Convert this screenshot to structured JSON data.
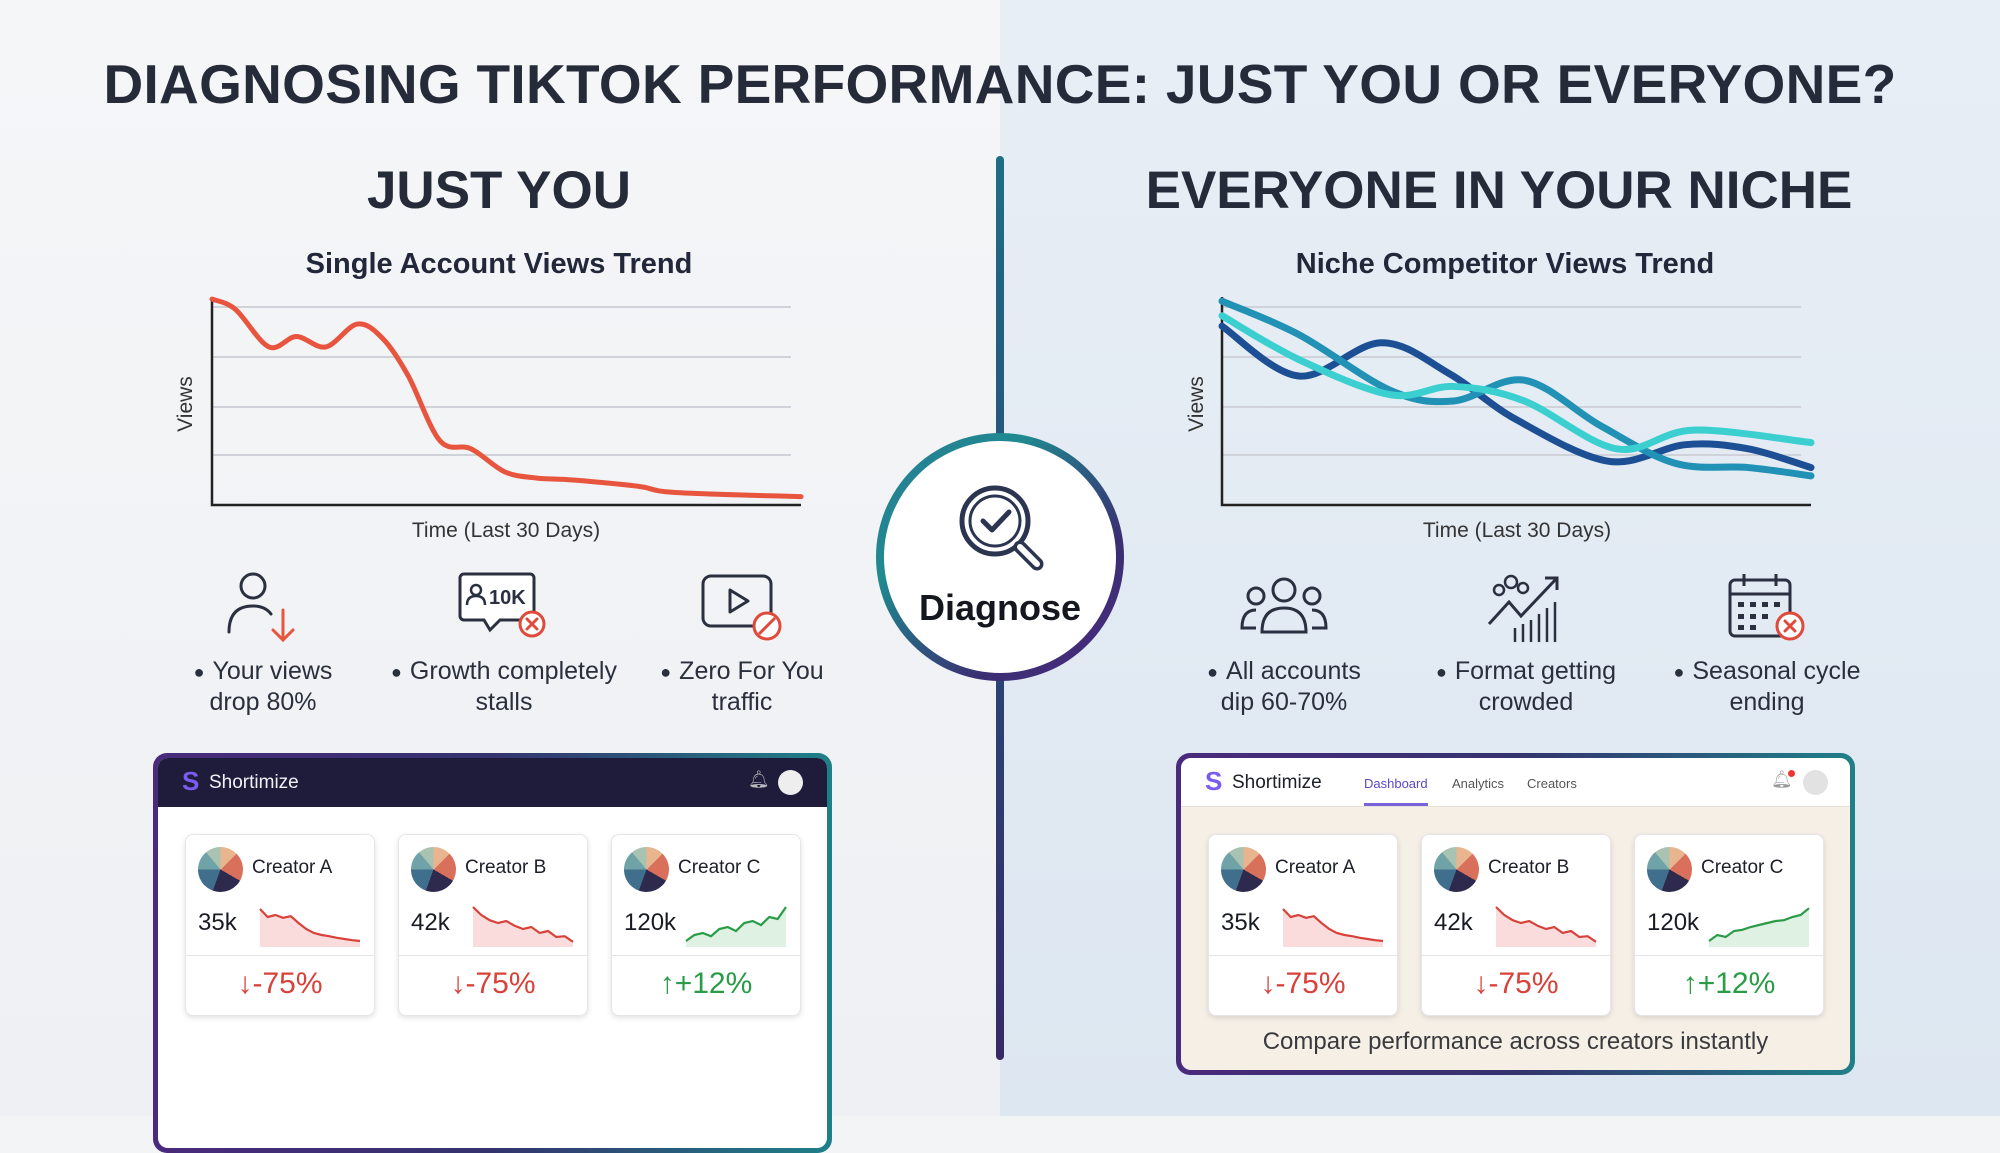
{
  "title": "DIAGNOSING TIKTOK PERFORMANCE: JUST YOU OR EVERYONE?",
  "colors": {
    "red": "#e8553f",
    "navy": "#1d4f94",
    "teal": "#2191b5",
    "cyan": "#3ccfd0",
    "down": "#d8423a",
    "up": "#2a9b46",
    "accent": "#6a4fd0"
  },
  "left": {
    "heading": "JUST YOU",
    "chart_title": "Single Account Views Trend",
    "features": [
      {
        "icon": "user-down-icon",
        "line1": "Your views",
        "line2": "drop 80%"
      },
      {
        "icon": "follower-stall-icon",
        "badge": "10K",
        "line1": "Growth completely",
        "line2": "stalls"
      },
      {
        "icon": "video-blocked-icon",
        "line1": "Zero For You",
        "line2": "traffic"
      }
    ]
  },
  "right": {
    "heading": "EVERYONE IN YOUR NICHE",
    "chart_title": "Niche Competitor Views Trend",
    "features": [
      {
        "icon": "group-icon",
        "line1": "All accounts",
        "line2": "dip 60-70%"
      },
      {
        "icon": "crowd-trend-icon",
        "line1": "Format getting",
        "line2": "crowded"
      },
      {
        "icon": "calendar-cancel-icon",
        "line1": "Seasonal cycle",
        "line2": "ending"
      }
    ]
  },
  "center": {
    "label": "Diagnose",
    "icon": "search-check-icon"
  },
  "dashboard_left": {
    "brand": "Shortimize",
    "cards": [
      {
        "name": "Creator A",
        "value": "35k",
        "change": "-75%",
        "dir": "down",
        "arrow": "↓",
        "spark": [
          90,
          70,
          75,
          68,
          72,
          55,
          40,
          30,
          25,
          22,
          18,
          15,
          12,
          10
        ]
      },
      {
        "name": "Creator B",
        "value": "42k",
        "change": "-75%",
        "dir": "down",
        "arrow": "↓",
        "spark": [
          95,
          75,
          62,
          55,
          60,
          48,
          40,
          45,
          30,
          35,
          20,
          22,
          8
        ]
      },
      {
        "name": "Creator C",
        "value": "120k",
        "change": "+12%",
        "dir": "up",
        "arrow": "↑",
        "spark": [
          10,
          25,
          30,
          22,
          40,
          45,
          35,
          55,
          60,
          50,
          70,
          65,
          95
        ]
      }
    ]
  },
  "dashboard_right": {
    "brand": "Shortimize",
    "tabs": [
      "Dashboard",
      "Analytics",
      "Creators"
    ],
    "active_tab": "Dashboard",
    "caption": "Compare performance across creators instantly",
    "cards": [
      {
        "name": "Creator A",
        "value": "35k",
        "change": "-75%",
        "dir": "down",
        "arrow": "↓",
        "spark": [
          90,
          70,
          75,
          68,
          72,
          55,
          40,
          30,
          25,
          22,
          18,
          15,
          12,
          10
        ]
      },
      {
        "name": "Creator B",
        "value": "42k",
        "change": "-75%",
        "dir": "down",
        "arrow": "↓",
        "spark": [
          95,
          75,
          62,
          55,
          60,
          48,
          40,
          45,
          30,
          35,
          20,
          22,
          8
        ]
      },
      {
        "name": "Creator C",
        "value": "120k",
        "change": "+12%",
        "dir": "up",
        "arrow": "↑",
        "spark": [
          10,
          25,
          20,
          35,
          38,
          45,
          50,
          55,
          60,
          62,
          70,
          75,
          92
        ]
      }
    ]
  },
  "chart_data": [
    {
      "type": "line",
      "title": "Single Account Views Trend",
      "xlabel": "Time (Last 30 Days)",
      "ylabel": "Views",
      "xlim": [
        0,
        30
      ],
      "ylim": [
        0,
        100
      ],
      "grid": true,
      "series": [
        {
          "color": "#e8553f",
          "x": [
            0,
            1.2,
            2.9,
            4.3,
            5.8,
            7.4,
            8.7,
            10,
            11.6,
            13.2,
            14.9,
            16.5,
            18.4,
            21.7,
            23.6,
            30
          ],
          "y": [
            99,
            94,
            76,
            81,
            76,
            87,
            80,
            62,
            31,
            27,
            16,
            13,
            12,
            9,
            6,
            4
          ]
        }
      ]
    },
    {
      "type": "line",
      "title": "Niche Competitor Views Trend",
      "xlabel": "Time (Last 30 Days)",
      "ylabel": "Views",
      "xlim": [
        0,
        30
      ],
      "ylim": [
        0,
        100
      ],
      "grid": true,
      "series": [
        {
          "color": "#1d4f94",
          "x": [
            0,
            3.9,
            8.1,
            11.6,
            15,
            19.7,
            23.6,
            26.8,
            30
          ],
          "y": [
            86,
            62,
            78,
            63,
            41,
            21,
            29,
            27,
            18
          ]
        },
        {
          "color": "#2191b5",
          "x": [
            0,
            3.9,
            8.6,
            11.8,
            15.4,
            19.3,
            23.1,
            26.8,
            30
          ],
          "y": [
            98,
            82,
            55,
            50,
            60,
            38,
            20,
            18,
            14
          ]
        },
        {
          "color": "#3ccfd0",
          "x": [
            0,
            3.9,
            8.6,
            11.8,
            15.4,
            20.1,
            24,
            30
          ],
          "y": [
            91,
            70,
            53,
            57,
            50,
            27,
            36,
            30
          ]
        }
      ]
    }
  ]
}
